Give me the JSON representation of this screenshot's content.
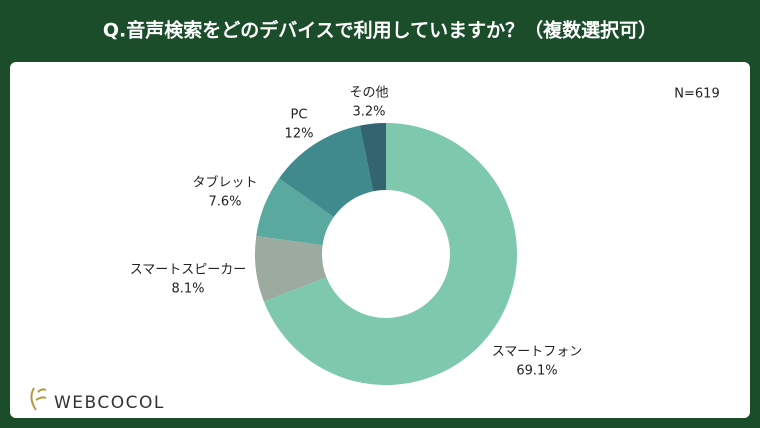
{
  "chart_data": {
    "type": "donut",
    "title": "Q.音声検索をどのデバイスで利用していますか？（複数選択可）",
    "note": "N=619",
    "categories": [
      "スマートフォン",
      "スマートスピーカー",
      "タブレット",
      "PC",
      "その他"
    ],
    "values": [
      69.1,
      8.1,
      7.6,
      12,
      3.2
    ],
    "value_labels": [
      "69.1%",
      "8.1%",
      "7.6%",
      "12%",
      "3.2%"
    ],
    "colors": [
      "#7ec8ad",
      "#9daa9f",
      "#5aa9a0",
      "#408a8e",
      "#336570"
    ]
  },
  "logo": "WEBCOCOL"
}
